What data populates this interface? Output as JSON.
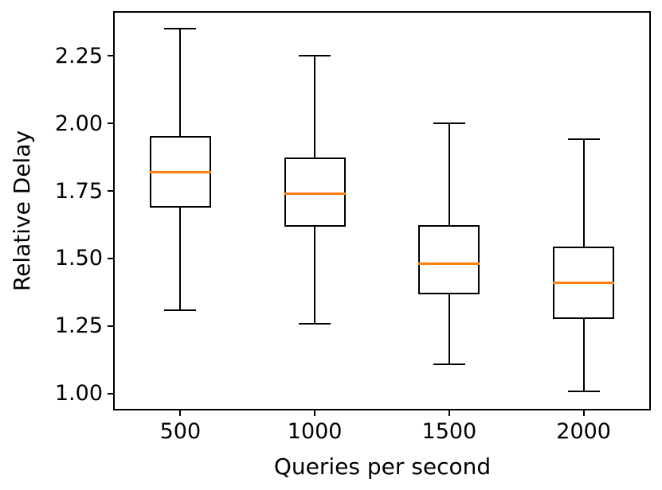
{
  "chart_data": {
    "type": "boxplot",
    "title": "",
    "xlabel": "Queries per second",
    "ylabel": "Relative Delay",
    "categories": [
      "500",
      "1000",
      "1500",
      "2000"
    ],
    "y_tick_labels": [
      "1.00",
      "1.25",
      "1.50",
      "1.75",
      "2.00",
      "2.25"
    ],
    "ylim": [
      0.938,
      2.415
    ],
    "grid": false,
    "legend": null,
    "colors": {
      "median": "#ff7f0e",
      "box": "#000000",
      "whisker": "#000000",
      "background": "#ffffff"
    },
    "series": [
      {
        "category": "500",
        "whisker_low": 1.31,
        "q1": 1.69,
        "median": 1.82,
        "q3": 1.95,
        "whisker_high": 2.35
      },
      {
        "category": "1000",
        "whisker_low": 1.26,
        "q1": 1.62,
        "median": 1.74,
        "q3": 1.87,
        "whisker_high": 2.25
      },
      {
        "category": "1500",
        "whisker_low": 1.11,
        "q1": 1.37,
        "median": 1.48,
        "q3": 1.62,
        "whisker_high": 2.0
      },
      {
        "category": "2000",
        "whisker_low": 1.01,
        "q1": 1.28,
        "median": 1.41,
        "q3": 1.54,
        "whisker_high": 1.94
      }
    ]
  }
}
